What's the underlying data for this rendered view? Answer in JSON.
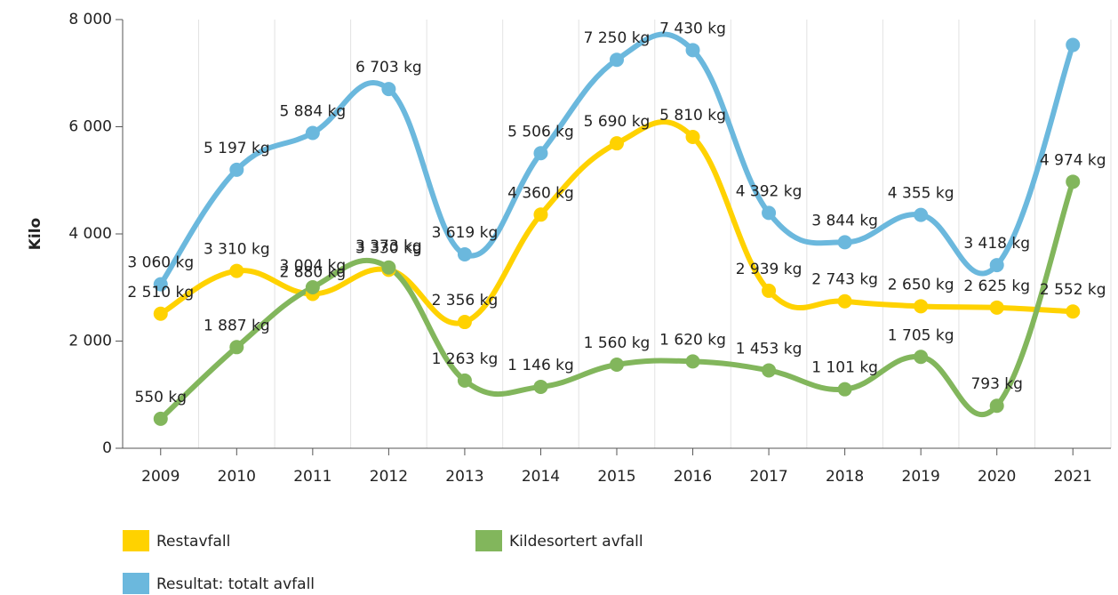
{
  "chart_data": {
    "type": "line",
    "y_label": "Kilo",
    "categories": [
      "2009",
      "2010",
      "2011",
      "2012",
      "2013",
      "2014",
      "2015",
      "2016",
      "2017",
      "2018",
      "2019",
      "2020",
      "2021"
    ],
    "series": [
      {
        "name": "Restavfall",
        "color": "#ffd200",
        "values": [
          2510,
          3310,
          2880,
          3330,
          2356,
          4360,
          5690,
          5810,
          2939,
          2743,
          2650,
          2625,
          2552
        ],
        "value_labels": [
          "2 510 kg",
          "3 310 kg",
          "2 880 kg",
          "3 330 kg",
          "2 356 kg",
          "4 360 kg",
          "5 690 kg",
          "5 810 kg",
          "2 939 kg",
          "2 743 kg",
          "2 650 kg",
          "2 625 kg",
          "2 552 kg"
        ]
      },
      {
        "name": "Kildesortert avfall",
        "color": "#82b65c",
        "values": [
          550,
          1887,
          3004,
          3373,
          1263,
          1146,
          1560,
          1620,
          1453,
          1101,
          1705,
          793,
          4974
        ],
        "value_labels": [
          "550 kg",
          "1 887 kg",
          "3 004 kg",
          "3 373 kg",
          "1 263 kg",
          "1 146 kg",
          "1 560 kg",
          "1 620 kg",
          "1 453 kg",
          "1 101 kg",
          "1 705 kg",
          "793 kg",
          "4 974 kg"
        ]
      },
      {
        "name": "Resultat: totalt avfall",
        "color": "#6bb8dd",
        "values": [
          3060,
          5197,
          5884,
          6703,
          3619,
          5506,
          7250,
          7430,
          4392,
          3844,
          4355,
          3418,
          7526
        ],
        "value_labels": [
          "3 060 kg",
          "5 197 kg",
          "5 884 kg",
          "6 703 kg",
          "3 619 kg",
          "5 506 kg",
          "7 250 kg",
          "7 430 kg",
          "4 392 kg",
          "3 844 kg",
          "4 355 kg",
          "3 418 kg",
          null
        ]
      }
    ],
    "ylim": [
      0,
      8000
    ],
    "yticks": [
      0,
      {
        "value": 2000,
        "label": "2 000"
      },
      {
        "value": 4000,
        "label": "4 000"
      },
      {
        "value": 6000,
        "label": "6 000"
      },
      {
        "value": 8000,
        "label": "8 000"
      }
    ],
    "grid": true
  }
}
